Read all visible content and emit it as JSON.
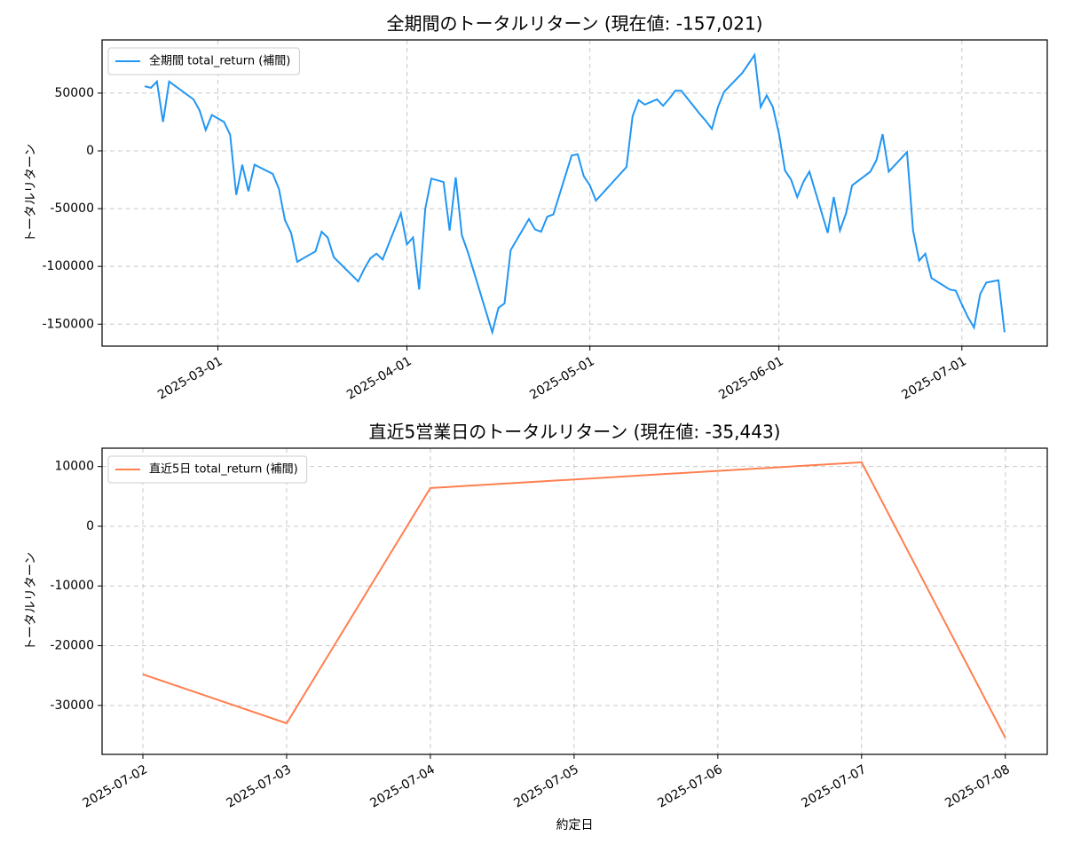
{
  "chart_data": [
    {
      "type": "line",
      "title": "全期間のトータルリターン (現在値: -157,021)",
      "ylabel": "トータルリターン",
      "x": [
        "2025-02-17",
        "2025-02-18",
        "2025-02-19",
        "2025-02-20",
        "2025-02-21",
        "2025-02-25",
        "2025-02-26",
        "2025-02-27",
        "2025-02-28",
        "2025-03-02",
        "2025-03-03",
        "2025-03-04",
        "2025-03-05",
        "2025-03-06",
        "2025-03-07",
        "2025-03-10",
        "2025-03-11",
        "2025-03-12",
        "2025-03-13",
        "2025-03-14",
        "2025-03-17",
        "2025-03-18",
        "2025-03-19",
        "2025-03-20",
        "2025-03-24",
        "2025-03-25",
        "2025-03-26",
        "2025-03-27",
        "2025-03-28",
        "2025-03-31",
        "2025-04-01",
        "2025-04-02",
        "2025-04-03",
        "2025-04-04",
        "2025-04-05",
        "2025-04-07",
        "2025-04-08",
        "2025-04-09",
        "2025-04-10",
        "2025-04-11",
        "2025-04-15",
        "2025-04-16",
        "2025-04-17",
        "2025-04-18",
        "2025-04-19",
        "2025-04-21",
        "2025-04-22",
        "2025-04-23",
        "2025-04-24",
        "2025-04-25",
        "2025-04-28",
        "2025-04-29",
        "2025-04-30",
        "2025-05-01",
        "2025-05-02",
        "2025-05-07",
        "2025-05-08",
        "2025-05-09",
        "2025-05-10",
        "2025-05-12",
        "2025-05-13",
        "2025-05-14",
        "2025-05-15",
        "2025-05-16",
        "2025-05-19",
        "2025-05-20",
        "2025-05-21",
        "2025-05-22",
        "2025-05-23",
        "2025-05-26",
        "2025-05-28",
        "2025-05-29",
        "2025-05-30",
        "2025-05-31",
        "2025-06-01",
        "2025-06-02",
        "2025-06-03",
        "2025-06-04",
        "2025-06-05",
        "2025-06-06",
        "2025-06-09",
        "2025-06-10",
        "2025-06-11",
        "2025-06-12",
        "2025-06-13",
        "2025-06-16",
        "2025-06-17",
        "2025-06-18",
        "2025-06-19",
        "2025-06-22",
        "2025-06-23",
        "2025-06-24",
        "2025-06-25",
        "2025-06-26",
        "2025-06-29",
        "2025-06-30",
        "2025-07-01",
        "2025-07-02",
        "2025-07-03",
        "2025-07-04",
        "2025-07-05",
        "2025-07-07",
        "2025-07-08"
      ],
      "series": [
        {
          "name": "全期間 total_return (補間)",
          "color": "#2196f3",
          "values": [
            56000,
            54500,
            60000,
            25000,
            60000,
            44500,
            35000,
            18000,
            31000,
            25000,
            14000,
            -38000,
            -12000,
            -35000,
            -12000,
            -20000,
            -33000,
            -60000,
            -71000,
            -96000,
            -87000,
            -70000,
            -75000,
            -92000,
            -113000,
            -102000,
            -93000,
            -89000,
            -94000,
            -54000,
            -81000,
            -75000,
            -120000,
            -50000,
            -24000,
            -27000,
            -69000,
            -23000,
            -73000,
            -88000,
            -157000,
            -136000,
            -132000,
            -86000,
            -77000,
            -59000,
            -68000,
            -70000,
            -57000,
            -55000,
            -4000,
            -3000,
            -22000,
            -30000,
            -43000,
            -14000,
            30000,
            44000,
            40000,
            44500,
            39000,
            45000,
            52000,
            52000,
            32000,
            26000,
            19000,
            38000,
            51000,
            67500,
            83000,
            38000,
            48000,
            38000,
            15000,
            -17000,
            -25000,
            -40000,
            -27000,
            -18000,
            -71000,
            -40000,
            -69000,
            -54000,
            -30000,
            -18000,
            -8000,
            14500,
            -18000,
            -1000,
            -69000,
            -95000,
            -89000,
            -110000,
            -120000,
            -121000,
            -133000,
            -144000,
            -153000,
            -124000,
            -114000,
            -112000,
            -157021
          ]
        }
      ],
      "xlim": [
        "2025-02-10",
        "2025-07-15"
      ],
      "xticks": [
        "2025-03-01",
        "2025-04-01",
        "2025-05-01",
        "2025-06-01",
        "2025-07-01"
      ],
      "ylim": [
        -169000,
        96000
      ],
      "yticks": [
        -150000,
        -100000,
        -50000,
        0,
        50000
      ],
      "grid": true,
      "legend": "upper left"
    },
    {
      "type": "line",
      "title": "直近5営業日のトータルリターン (現在値: -35,443)",
      "ylabel": "トータルリターン",
      "xlabel": "約定日",
      "x": [
        "2025-07-02",
        "2025-07-03",
        "2025-07-04",
        "2025-07-07",
        "2025-07-08"
      ],
      "series": [
        {
          "name": "直近5日 total_return (補間)",
          "color": "#ff7f50",
          "values": [
            -24800,
            -33000,
            6400,
            10700,
            -35443
          ]
        }
      ],
      "xlim": [
        "2025-07-01T17:11",
        "2025-07-08T07:00"
      ],
      "xticks": [
        "2025-07-02",
        "2025-07-03",
        "2025-07-04",
        "2025-07-05",
        "2025-07-06",
        "2025-07-07",
        "2025-07-08"
      ],
      "ylim": [
        -38200,
        13070
      ],
      "yticks": [
        -30000,
        -20000,
        -10000,
        0,
        10000
      ],
      "grid": true,
      "legend": "upper left"
    }
  ]
}
